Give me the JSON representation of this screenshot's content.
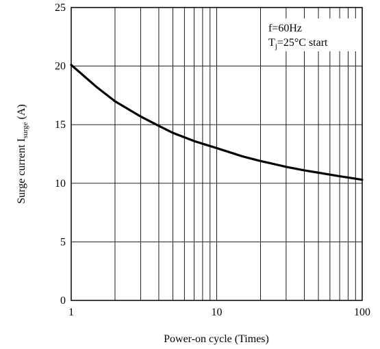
{
  "chart_data": {
    "type": "line",
    "xlabel": "Power-on cycle (Times)",
    "ylabel": {
      "prefix": "Surge current I",
      "subscript": "surge",
      "suffix": " (A)"
    },
    "x_scale": "log",
    "xlim": [
      1,
      100
    ],
    "ylim": [
      0,
      25
    ],
    "x_ticks": [
      1,
      10,
      100
    ],
    "x_tick_labels": [
      "1",
      "10",
      "100"
    ],
    "y_ticks": [
      0,
      5,
      10,
      15,
      20,
      25
    ],
    "y_tick_labels": [
      "0",
      "5",
      "10",
      "15",
      "20",
      "25"
    ],
    "grid": true,
    "annotations": {
      "line1": "f=60Hz",
      "line2": {
        "prefix": "T",
        "subscript": "j",
        "suffix": "=25°C start"
      }
    },
    "series": [
      {
        "x": [
          1,
          1.5,
          2,
          3,
          4,
          5,
          7,
          10,
          15,
          20,
          30,
          40,
          50,
          70,
          100
        ],
        "y": [
          20.1,
          18.2,
          17.0,
          15.7,
          14.9,
          14.3,
          13.6,
          13.0,
          12.3,
          11.9,
          11.4,
          11.1,
          10.9,
          10.6,
          10.3
        ]
      }
    ]
  }
}
